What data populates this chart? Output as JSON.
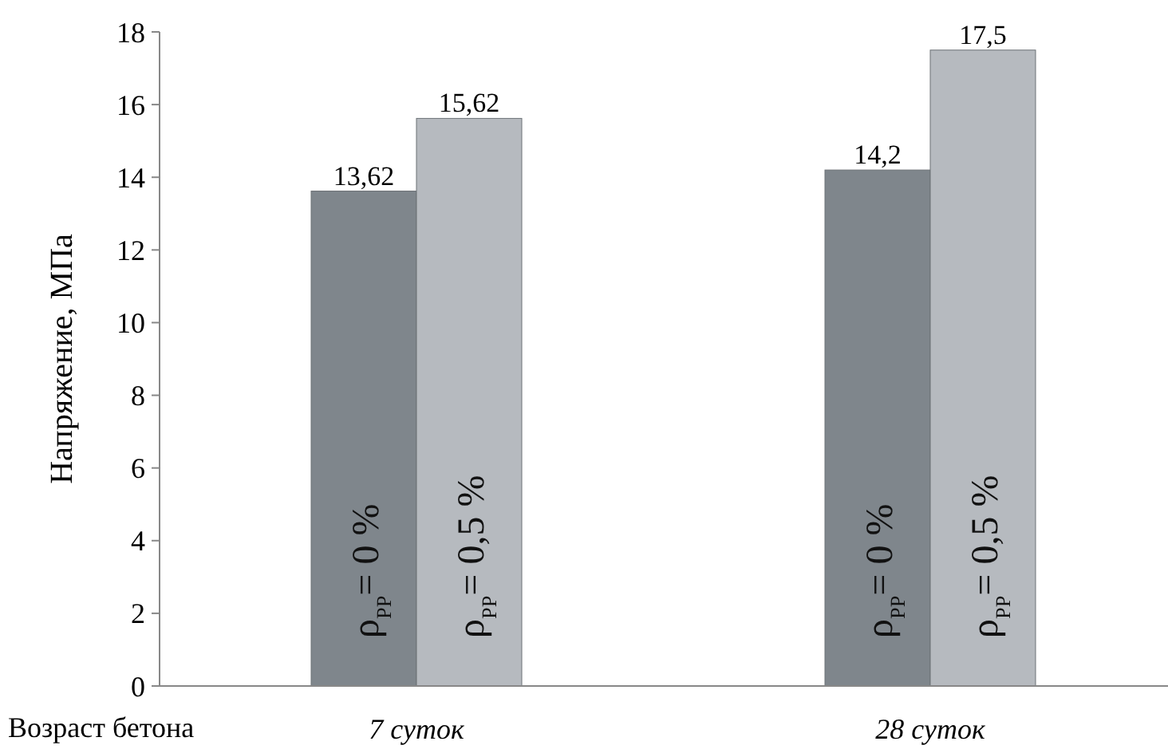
{
  "chart_data": {
    "type": "bar",
    "xlabel": "Возраст бетона",
    "ylabel": "Напряжение, МПа",
    "categories": [
      "7 суток",
      "28 суток"
    ],
    "series": [
      {
        "name": "ρ$_{PP}$= 0 %",
        "color": "#7f868c",
        "values": [
          13.62,
          14.2
        ],
        "value_labels": [
          "13,62",
          "14,2"
        ]
      },
      {
        "name": "ρ$_{PP}$= 0,5 %",
        "color": "#b6babf",
        "values": [
          15.62,
          17.5
        ],
        "value_labels": [
          "15,62",
          "17,5"
        ]
      }
    ],
    "ylim": [
      0,
      18
    ],
    "yticks": [
      0,
      2,
      4,
      6,
      8,
      10,
      12,
      14,
      16,
      18
    ],
    "grid": false,
    "legend": false
  }
}
